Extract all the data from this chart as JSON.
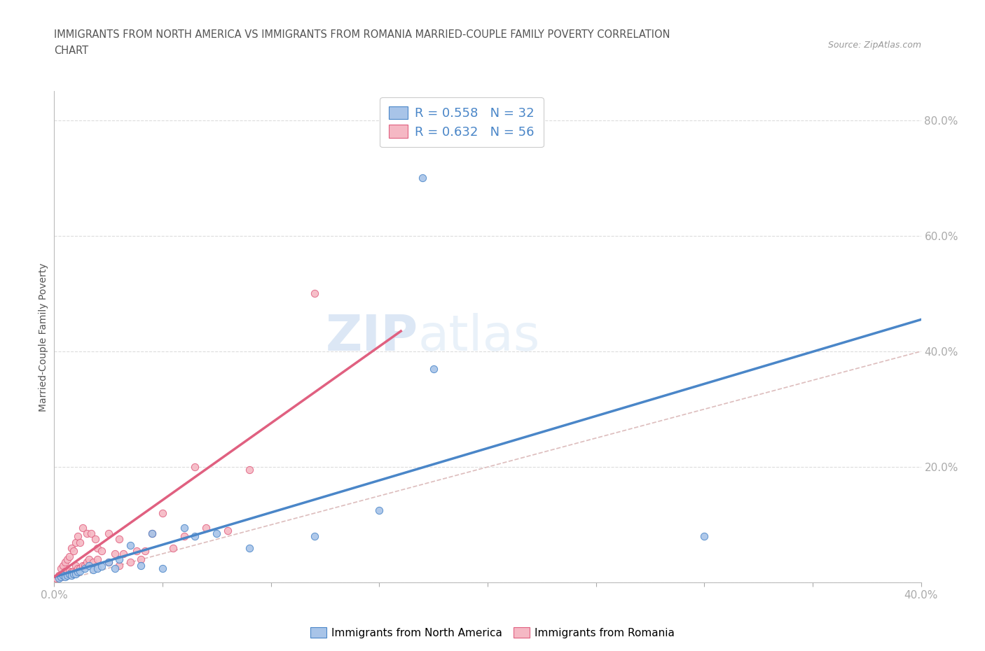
{
  "title_line1": "IMMIGRANTS FROM NORTH AMERICA VS IMMIGRANTS FROM ROMANIA MARRIED-COUPLE FAMILY POVERTY CORRELATION",
  "title_line2": "CHART",
  "source": "Source: ZipAtlas.com",
  "ylabel": "Married-Couple Family Poverty",
  "xlim": [
    0.0,
    0.4
  ],
  "ylim": [
    0.0,
    0.85
  ],
  "R_blue": 0.558,
  "N_blue": 32,
  "R_pink": 0.632,
  "N_pink": 56,
  "legend_labels": [
    "Immigrants from North America",
    "Immigrants from Romania"
  ],
  "blue_color": "#a8c4e8",
  "pink_color": "#f5b8c4",
  "blue_line_color": "#4a86c8",
  "pink_line_color": "#e06080",
  "diagonal_color": "#cccccc",
  "watermark_zip": "ZIP",
  "watermark_atlas": "atlas",
  "blue_scatter_x": [
    0.002,
    0.003,
    0.004,
    0.005,
    0.006,
    0.007,
    0.008,
    0.009,
    0.01,
    0.011,
    0.012,
    0.014,
    0.016,
    0.018,
    0.02,
    0.022,
    0.025,
    0.028,
    0.03,
    0.035,
    0.04,
    0.045,
    0.05,
    0.06,
    0.065,
    0.075,
    0.09,
    0.12,
    0.15,
    0.175,
    0.3,
    0.17
  ],
  "blue_scatter_y": [
    0.008,
    0.01,
    0.012,
    0.01,
    0.012,
    0.015,
    0.012,
    0.015,
    0.015,
    0.018,
    0.02,
    0.025,
    0.03,
    0.022,
    0.025,
    0.028,
    0.035,
    0.025,
    0.04,
    0.065,
    0.03,
    0.085,
    0.025,
    0.095,
    0.08,
    0.085,
    0.06,
    0.08,
    0.125,
    0.37,
    0.08,
    0.7
  ],
  "pink_scatter_x": [
    0.001,
    0.002,
    0.002,
    0.003,
    0.003,
    0.004,
    0.004,
    0.005,
    0.005,
    0.005,
    0.006,
    0.006,
    0.007,
    0.007,
    0.008,
    0.008,
    0.009,
    0.009,
    0.01,
    0.01,
    0.01,
    0.011,
    0.011,
    0.012,
    0.012,
    0.013,
    0.013,
    0.014,
    0.015,
    0.015,
    0.016,
    0.017,
    0.018,
    0.019,
    0.02,
    0.02,
    0.022,
    0.025,
    0.025,
    0.028,
    0.03,
    0.03,
    0.032,
    0.035,
    0.038,
    0.04,
    0.042,
    0.045,
    0.05,
    0.055,
    0.06,
    0.065,
    0.07,
    0.08,
    0.09,
    0.12
  ],
  "pink_scatter_y": [
    0.008,
    0.01,
    0.012,
    0.01,
    0.025,
    0.015,
    0.03,
    0.015,
    0.02,
    0.035,
    0.018,
    0.04,
    0.02,
    0.045,
    0.018,
    0.06,
    0.02,
    0.055,
    0.02,
    0.03,
    0.07,
    0.025,
    0.08,
    0.025,
    0.07,
    0.03,
    0.095,
    0.03,
    0.035,
    0.085,
    0.04,
    0.085,
    0.035,
    0.075,
    0.04,
    0.06,
    0.055,
    0.035,
    0.085,
    0.05,
    0.03,
    0.075,
    0.05,
    0.035,
    0.055,
    0.04,
    0.055,
    0.085,
    0.12,
    0.06,
    0.08,
    0.2,
    0.095,
    0.09,
    0.195,
    0.5
  ],
  "blue_line_x0": 0.0,
  "blue_line_y0": 0.01,
  "blue_line_x1": 0.4,
  "blue_line_y1": 0.455,
  "pink_line_x0": 0.0,
  "pink_line_y0": 0.01,
  "pink_line_x1": 0.16,
  "pink_line_y1": 0.435
}
